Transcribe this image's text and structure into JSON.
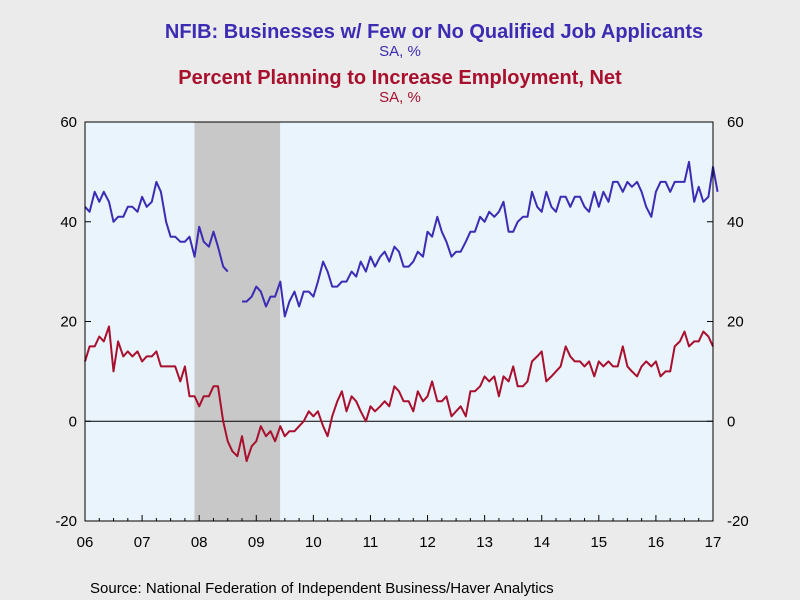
{
  "chart_data": {
    "type": "line",
    "titles": [
      {
        "text": "NFIB: Businesses w/ Few or No Qualified Job Applicants",
        "color": "#3c2cb4"
      },
      {
        "text": "SA, %",
        "color": "#3c2cb4"
      },
      {
        "text": "Percent Planning to Increase Employment, Net",
        "color": "#a8102e"
      },
      {
        "text": "SA, %",
        "color": "#a8102e"
      }
    ],
    "source": "Source:  National Federation of Independent Business/Haver Analytics",
    "x_range": [
      2006.0,
      2017.0
    ],
    "x_ticks": [
      {
        "label": "06",
        "value": 2006
      },
      {
        "label": "07",
        "value": 2007
      },
      {
        "label": "08",
        "value": 2008
      },
      {
        "label": "09",
        "value": 2009
      },
      {
        "label": "10",
        "value": 2010
      },
      {
        "label": "11",
        "value": 2011
      },
      {
        "label": "12",
        "value": 2012
      },
      {
        "label": "13",
        "value": 2013
      },
      {
        "label": "14",
        "value": 2014
      },
      {
        "label": "15",
        "value": 2015
      },
      {
        "label": "16",
        "value": 2016
      },
      {
        "label": "17",
        "value": 2017
      }
    ],
    "ylim": [
      -20,
      60
    ],
    "y_ticks": [
      {
        "label": "60",
        "value": 60
      },
      {
        "label": "40",
        "value": 40
      },
      {
        "label": "20",
        "value": 20
      },
      {
        "label": "0",
        "value": 0
      },
      {
        "label": "-20",
        "value": -20
      }
    ],
    "y_ticks_right": [
      {
        "label": "60",
        "value": 60
      },
      {
        "label": "40",
        "value": 40
      },
      {
        "label": "20",
        "value": 20
      },
      {
        "label": "0",
        "value": 0
      },
      {
        "label": "-20",
        "value": -20
      }
    ],
    "zero_line": 0,
    "recession": {
      "start": 2007.917,
      "end": 2009.417,
      "color": "#c8c8c8"
    },
    "plot_background": "#eaf4fc",
    "grid": false,
    "series": [
      {
        "color": "#3c2cb4",
        "points": [
          [
            2006.0,
            43
          ],
          [
            2006.08,
            42
          ],
          [
            2006.17,
            46
          ],
          [
            2006.25,
            44
          ],
          [
            2006.33,
            46
          ],
          [
            2006.42,
            44
          ],
          [
            2006.5,
            40
          ],
          [
            2006.58,
            41
          ],
          [
            2006.67,
            41
          ],
          [
            2006.75,
            43
          ],
          [
            2006.83,
            43
          ],
          [
            2006.92,
            42
          ],
          [
            2007.0,
            45
          ],
          [
            2007.08,
            43
          ],
          [
            2007.17,
            44
          ],
          [
            2007.25,
            48
          ],
          [
            2007.33,
            46
          ],
          [
            2007.42,
            40
          ],
          [
            2007.5,
            37
          ],
          [
            2007.58,
            37
          ],
          [
            2007.67,
            36
          ],
          [
            2007.75,
            36
          ],
          [
            2007.83,
            37
          ],
          [
            2007.92,
            33
          ],
          [
            2008.0,
            39
          ],
          [
            2008.08,
            36
          ],
          [
            2008.17,
            35
          ],
          [
            2008.25,
            38
          ],
          [
            2008.33,
            35
          ],
          [
            2008.42,
            31
          ],
          [
            2008.5,
            30
          ],
          null,
          [
            2008.75,
            24
          ],
          [
            2008.83,
            24
          ],
          [
            2008.92,
            25
          ],
          [
            2009.0,
            27
          ],
          [
            2009.08,
            26
          ],
          [
            2009.17,
            23
          ],
          [
            2009.25,
            25
          ],
          [
            2009.33,
            25
          ],
          [
            2009.42,
            28
          ],
          [
            2009.5,
            21
          ],
          [
            2009.58,
            24
          ],
          [
            2009.67,
            26
          ],
          [
            2009.75,
            23
          ],
          [
            2009.83,
            26
          ],
          [
            2009.92,
            26
          ],
          [
            2010.0,
            25
          ],
          [
            2010.08,
            28
          ],
          [
            2010.17,
            32
          ],
          [
            2010.25,
            30
          ],
          [
            2010.33,
            27
          ],
          [
            2010.42,
            27
          ],
          [
            2010.5,
            28
          ],
          [
            2010.58,
            28
          ],
          [
            2010.67,
            30
          ],
          [
            2010.75,
            29
          ],
          [
            2010.83,
            32
          ],
          [
            2010.92,
            30
          ],
          [
            2011.0,
            33
          ],
          [
            2011.08,
            31
          ],
          [
            2011.17,
            33
          ],
          [
            2011.25,
            34
          ],
          [
            2011.33,
            32
          ],
          [
            2011.42,
            35
          ],
          [
            2011.5,
            34
          ],
          [
            2011.58,
            31
          ],
          [
            2011.67,
            31
          ],
          [
            2011.75,
            32
          ],
          [
            2011.83,
            34
          ],
          [
            2011.92,
            33
          ],
          [
            2012.0,
            38
          ],
          [
            2012.08,
            37
          ],
          [
            2012.17,
            41
          ],
          [
            2012.25,
            38
          ],
          [
            2012.33,
            36
          ],
          [
            2012.42,
            33
          ],
          [
            2012.5,
            34
          ],
          [
            2012.58,
            34
          ],
          [
            2012.67,
            36
          ],
          [
            2012.75,
            38
          ],
          [
            2012.83,
            38
          ],
          [
            2012.92,
            41
          ],
          [
            2013.0,
            40
          ],
          [
            2013.08,
            42
          ],
          [
            2013.17,
            41
          ],
          [
            2013.25,
            42
          ],
          [
            2013.33,
            44
          ],
          [
            2013.42,
            38
          ],
          [
            2013.5,
            38
          ],
          [
            2013.58,
            40
          ],
          [
            2013.67,
            41
          ],
          [
            2013.75,
            41
          ],
          [
            2013.83,
            46
          ],
          [
            2013.92,
            43
          ],
          [
            2014.0,
            42
          ],
          [
            2014.08,
            46
          ],
          [
            2014.17,
            43
          ],
          [
            2014.25,
            42
          ],
          [
            2014.33,
            45
          ],
          [
            2014.42,
            45
          ],
          [
            2014.5,
            43
          ],
          [
            2014.58,
            45
          ],
          [
            2014.67,
            45
          ],
          [
            2014.75,
            43
          ],
          [
            2014.83,
            42
          ],
          [
            2014.92,
            46
          ],
          [
            2015.0,
            43
          ],
          [
            2015.08,
            46
          ],
          [
            2015.17,
            44
          ],
          [
            2015.25,
            48
          ],
          [
            2015.33,
            48
          ],
          [
            2015.42,
            46
          ],
          [
            2015.5,
            48
          ],
          [
            2015.58,
            47
          ],
          [
            2015.67,
            48
          ],
          [
            2015.75,
            46
          ],
          [
            2015.83,
            43
          ],
          [
            2015.92,
            41
          ],
          [
            2016.0,
            46
          ],
          [
            2016.08,
            48
          ],
          [
            2016.17,
            48
          ],
          [
            2016.25,
            46
          ],
          [
            2016.33,
            48
          ],
          [
            2016.42,
            48
          ],
          [
            2016.5,
            48
          ],
          [
            2016.58,
            52
          ],
          [
            2016.67,
            44
          ],
          [
            2016.75,
            47
          ],
          [
            2016.83,
            44
          ],
          [
            2016.92,
            45
          ],
          [
            2017.0,
            51
          ],
          [
            2017.08,
            46
          ]
        ]
      },
      {
        "color": "#a8102e",
        "points": [
          [
            2006.0,
            12
          ],
          [
            2006.08,
            15
          ],
          [
            2006.17,
            15
          ],
          [
            2006.25,
            17
          ],
          [
            2006.33,
            16
          ],
          [
            2006.42,
            19
          ],
          [
            2006.5,
            10
          ],
          [
            2006.58,
            16
          ],
          [
            2006.67,
            13
          ],
          [
            2006.75,
            14
          ],
          [
            2006.83,
            13
          ],
          [
            2006.92,
            14
          ],
          [
            2007.0,
            12
          ],
          [
            2007.08,
            13
          ],
          [
            2007.17,
            13
          ],
          [
            2007.25,
            14
          ],
          [
            2007.33,
            11
          ],
          [
            2007.42,
            11
          ],
          [
            2007.5,
            11
          ],
          [
            2007.58,
            11
          ],
          [
            2007.67,
            8
          ],
          [
            2007.75,
            11
          ],
          [
            2007.83,
            5
          ],
          [
            2007.92,
            5
          ],
          [
            2008.0,
            3
          ],
          [
            2008.08,
            5
          ],
          [
            2008.17,
            5
          ],
          [
            2008.25,
            7
          ],
          [
            2008.33,
            7
          ],
          [
            2008.42,
            0
          ],
          [
            2008.5,
            -4
          ],
          [
            2008.58,
            -6
          ],
          [
            2008.67,
            -7
          ],
          [
            2008.75,
            -3
          ],
          [
            2008.83,
            -8
          ],
          [
            2008.92,
            -5
          ],
          [
            2009.0,
            -4
          ],
          [
            2009.08,
            -1
          ],
          [
            2009.17,
            -3
          ],
          [
            2009.25,
            -2
          ],
          [
            2009.33,
            -4
          ],
          [
            2009.42,
            -1
          ],
          [
            2009.5,
            -3
          ],
          [
            2009.58,
            -2
          ],
          [
            2009.67,
            -2
          ],
          [
            2009.75,
            -1
          ],
          [
            2009.83,
            0
          ],
          [
            2009.92,
            2
          ],
          [
            2010.0,
            1
          ],
          [
            2010.08,
            2
          ],
          [
            2010.17,
            -1
          ],
          [
            2010.25,
            -3
          ],
          [
            2010.33,
            1
          ],
          [
            2010.42,
            4
          ],
          [
            2010.5,
            6
          ],
          [
            2010.58,
            2
          ],
          [
            2010.67,
            5
          ],
          [
            2010.75,
            4
          ],
          [
            2010.83,
            2
          ],
          [
            2010.92,
            0
          ],
          [
            2011.0,
            3
          ],
          [
            2011.08,
            2
          ],
          [
            2011.17,
            3
          ],
          [
            2011.25,
            4
          ],
          [
            2011.33,
            3
          ],
          [
            2011.42,
            7
          ],
          [
            2011.5,
            6
          ],
          [
            2011.58,
            4
          ],
          [
            2011.67,
            4
          ],
          [
            2011.75,
            2
          ],
          [
            2011.83,
            6
          ],
          [
            2011.92,
            4
          ],
          [
            2012.0,
            5
          ],
          [
            2012.08,
            8
          ],
          [
            2012.17,
            4
          ],
          [
            2012.25,
            4
          ],
          [
            2012.33,
            5
          ],
          [
            2012.42,
            1
          ],
          [
            2012.5,
            2
          ],
          [
            2012.58,
            3
          ],
          [
            2012.67,
            1
          ],
          [
            2012.75,
            6
          ],
          [
            2012.83,
            6
          ],
          [
            2012.92,
            7
          ],
          [
            2013.0,
            9
          ],
          [
            2013.08,
            8
          ],
          [
            2013.17,
            9
          ],
          [
            2013.25,
            5
          ],
          [
            2013.33,
            9
          ],
          [
            2013.42,
            8
          ],
          [
            2013.5,
            11
          ],
          [
            2013.58,
            7
          ],
          [
            2013.67,
            7
          ],
          [
            2013.75,
            8
          ],
          [
            2013.83,
            12
          ],
          [
            2013.92,
            13
          ],
          [
            2014.0,
            14
          ],
          [
            2014.08,
            8
          ],
          [
            2014.17,
            9
          ],
          [
            2014.25,
            10
          ],
          [
            2014.33,
            11
          ],
          [
            2014.42,
            15
          ],
          [
            2014.5,
            13
          ],
          [
            2014.58,
            12
          ],
          [
            2014.67,
            12
          ],
          [
            2014.75,
            11
          ],
          [
            2014.83,
            12
          ],
          [
            2014.92,
            9
          ],
          [
            2015.0,
            12
          ],
          [
            2015.08,
            11
          ],
          [
            2015.17,
            12
          ],
          [
            2015.25,
            11
          ],
          [
            2015.33,
            11
          ],
          [
            2015.42,
            15
          ],
          [
            2015.5,
            11
          ],
          [
            2015.58,
            10
          ],
          [
            2015.67,
            9
          ],
          [
            2015.75,
            11
          ],
          [
            2015.83,
            12
          ],
          [
            2015.92,
            11
          ],
          [
            2016.0,
            12
          ],
          [
            2016.08,
            9
          ],
          [
            2016.17,
            10
          ],
          [
            2016.25,
            10
          ],
          [
            2016.33,
            15
          ],
          [
            2016.42,
            16
          ],
          [
            2016.5,
            18
          ],
          [
            2016.58,
            15
          ],
          [
            2016.67,
            16
          ],
          [
            2016.75,
            16
          ],
          [
            2016.83,
            18
          ],
          [
            2016.92,
            17
          ],
          [
            2017.0,
            15
          ]
        ]
      }
    ]
  }
}
